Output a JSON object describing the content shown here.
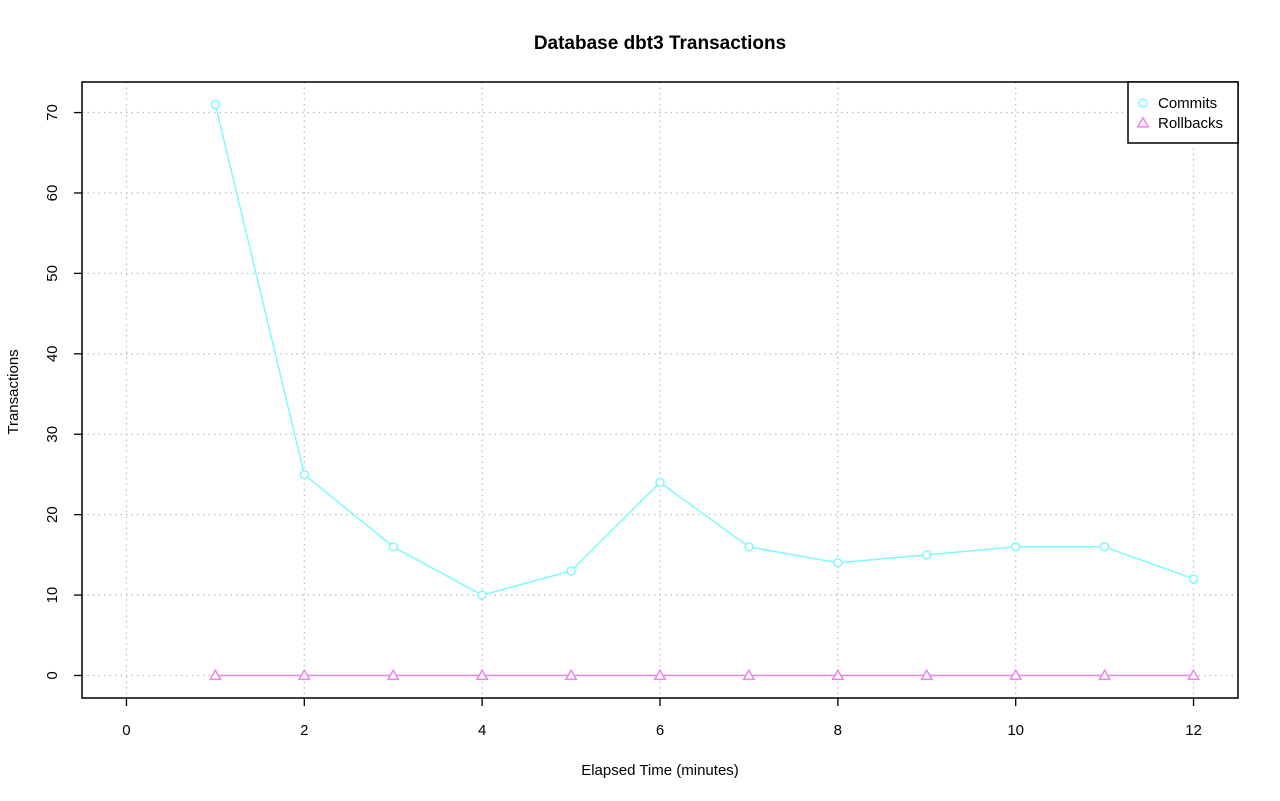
{
  "chart_data": {
    "type": "line",
    "title": "Database dbt3 Transactions",
    "xlabel": "Elapsed Time (minutes)",
    "ylabel": "Transactions",
    "xlim": [
      -0.5,
      12.5
    ],
    "ylim": [
      -2.8,
      73.8
    ],
    "x_ticks": [
      0,
      2,
      4,
      6,
      8,
      10,
      12
    ],
    "y_ticks": [
      0,
      10,
      20,
      30,
      40,
      50,
      60,
      70
    ],
    "grid": true,
    "legend_position": "top-right",
    "x": [
      1,
      2,
      3,
      4,
      5,
      6,
      7,
      8,
      9,
      10,
      11,
      12
    ],
    "series": [
      {
        "name": "Commits",
        "marker": "circle",
        "color": "#7ffaff",
        "values": [
          71,
          25,
          16,
          10,
          13,
          24,
          16,
          14,
          15,
          16,
          16,
          12
        ]
      },
      {
        "name": "Rollbacks",
        "marker": "triangle",
        "color": "#ee82ee",
        "values": [
          0,
          0,
          0,
          0,
          0,
          0,
          0,
          0,
          0,
          0,
          0,
          0
        ]
      }
    ]
  }
}
